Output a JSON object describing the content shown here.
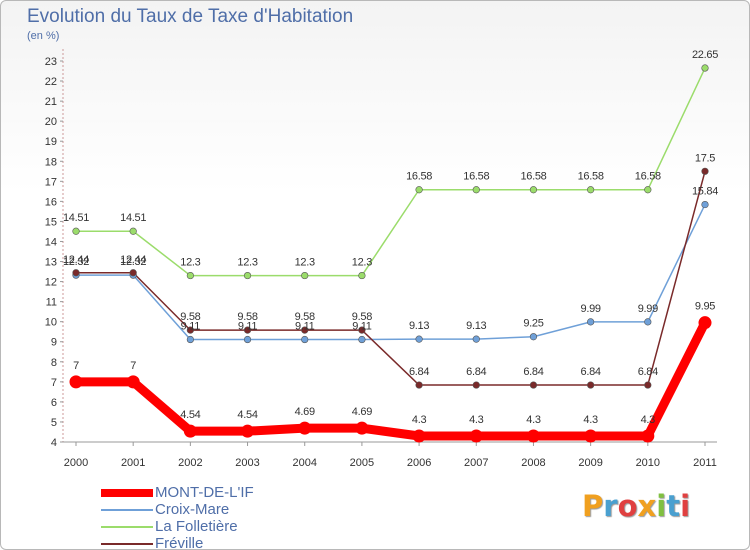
{
  "title": "Evolution du Taux de Taxe d'Habitation",
  "subtitle": "(en %)",
  "brand": {
    "letters": [
      "P",
      "r",
      "o",
      "x",
      "i",
      "t",
      "i"
    ],
    "colors": [
      "#f0a020",
      "#4aa0d0",
      "#e04040",
      "#f0a020",
      "#80c040",
      "#4aa0d0",
      "#e04040"
    ]
  },
  "chart_data": {
    "type": "line",
    "x": [
      2000,
      2001,
      2002,
      2003,
      2004,
      2005,
      2006,
      2007,
      2008,
      2009,
      2010,
      2011
    ],
    "y_ticks": [
      4,
      5,
      6,
      7,
      8,
      9,
      10,
      11,
      12,
      13,
      14,
      15,
      16,
      17,
      18,
      19,
      20,
      21,
      22,
      23
    ],
    "ylim": [
      4,
      23
    ],
    "grid": false,
    "legend_position": "bottom-left",
    "series": [
      {
        "name": "MONT-DE-L'IF",
        "color": "#ff0000",
        "highlight": true,
        "values": [
          7,
          7,
          4.54,
          4.54,
          4.69,
          4.69,
          4.3,
          4.3,
          4.3,
          4.3,
          4.3,
          9.95
        ],
        "labels": [
          "7",
          "7",
          "4.54",
          "4.54",
          "4.69",
          "4.69",
          "4.3",
          "4.3",
          "4.3",
          "4.3",
          "4.3",
          "9.95"
        ]
      },
      {
        "name": "Croix-Mare",
        "color": "#6fa0d8",
        "values": [
          12.32,
          12.32,
          9.11,
          9.11,
          9.11,
          9.11,
          9.13,
          9.13,
          9.25,
          9.99,
          9.99,
          15.84
        ],
        "labels": [
          "12.32",
          "12.32",
          "9.11",
          "9.11",
          "9.11",
          "9.11",
          "9.13",
          "9.13",
          "9.25",
          "9.99",
          "9.99",
          "15.84"
        ]
      },
      {
        "name": "La Folletière",
        "color": "#9bdc6b",
        "values": [
          14.51,
          14.51,
          12.3,
          12.3,
          12.3,
          12.3,
          16.58,
          16.58,
          16.58,
          16.58,
          16.58,
          22.65
        ],
        "labels": [
          "14.51",
          "14.51",
          "12.3",
          "12.3",
          "12.3",
          "12.3",
          "16.58",
          "16.58",
          "16.58",
          "16.58",
          "16.58",
          "22.65"
        ]
      },
      {
        "name": "Fréville",
        "color": "#7a2a2a",
        "values": [
          12.44,
          12.44,
          9.58,
          9.58,
          9.58,
          9.58,
          6.84,
          6.84,
          6.84,
          6.84,
          6.84,
          17.5
        ],
        "labels": [
          "12.44",
          "12.44",
          "9.58",
          "9.58",
          "9.58",
          "9.58",
          "6.84",
          "6.84",
          "6.84",
          "6.84",
          "6.84",
          "17.5"
        ]
      }
    ]
  }
}
